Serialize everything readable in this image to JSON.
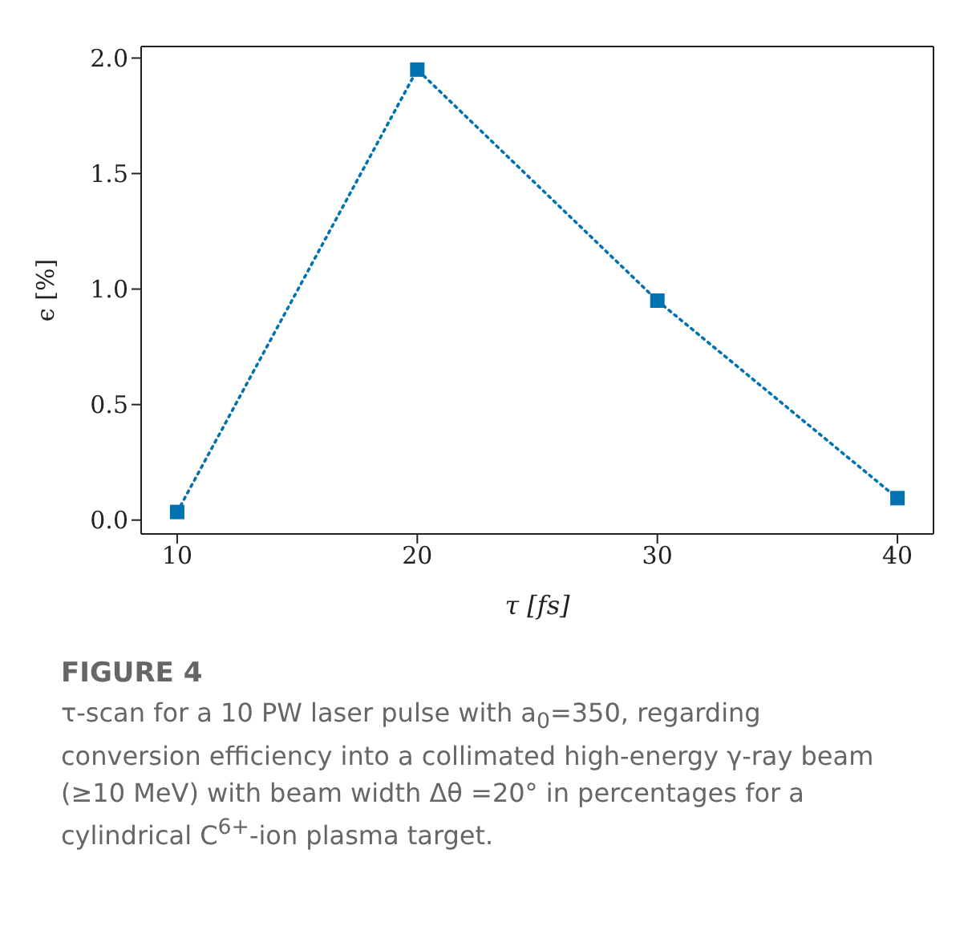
{
  "chart_data": {
    "type": "line",
    "xlabel": "τ [fs]",
    "ylabel": "ϵ [%]",
    "x": [
      10,
      20,
      30,
      40
    ],
    "series": [
      {
        "color": "#0072b2",
        "values": [
          0.035,
          1.95,
          0.95,
          0.095
        ]
      }
    ],
    "marker": "square",
    "line_style": "dotted",
    "xlim": [
      8.5,
      41.5
    ],
    "xticks": [
      10,
      20,
      30,
      40
    ],
    "ylim": [
      -0.06,
      2.05
    ],
    "yticks": [
      {
        "value": 0,
        "label": "0.0"
      },
      {
        "value": 0.5,
        "label": "0.5"
      },
      {
        "value": 1,
        "label": "1.0"
      },
      {
        "value": 1.5,
        "label": "1.5"
      },
      {
        "value": 2,
        "label": "2.0"
      }
    ],
    "grid": false,
    "legend": false,
    "annotations": [
      "FIGURE 4",
      "τ-scan for a 10 PW laser pulse with a$_{0}$=350, regarding conversion efficiency into a collimated high-energy γ-ray beam (≥10 MeV) with beam width Δθ =20° in percentages for a cylindrical C$^{6+}$-ion plasma target."
    ]
  }
}
